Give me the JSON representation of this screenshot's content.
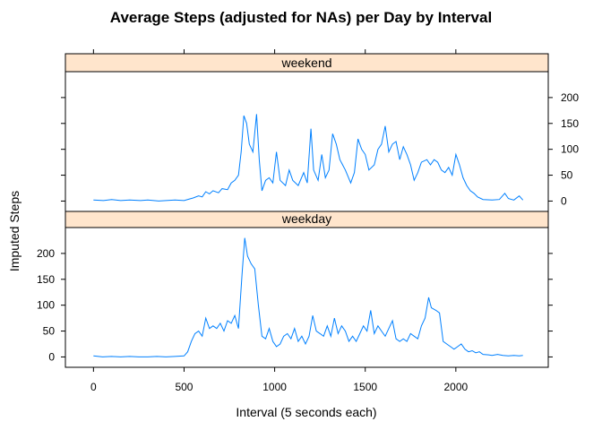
{
  "chart_data": {
    "type": "line",
    "title": "Average Steps (adjusted for NAs) per Day by Interval",
    "xlabel": "Interval (5 seconds each)",
    "ylabel": "Imputed Steps",
    "xlim": [
      -155,
      2510
    ],
    "ylim": [
      -20,
      250
    ],
    "xticks": [
      0,
      500,
      1000,
      1500,
      2000
    ],
    "xtick_labels": [
      "0",
      "500",
      "1000",
      "1500",
      "2000"
    ],
    "yticks": [
      0,
      50,
      100,
      150,
      200
    ],
    "ytick_labels": [
      "0",
      "50",
      "100",
      "150",
      "200"
    ],
    "grid": false,
    "panels": [
      {
        "name": "weekend",
        "points": [
          [
            0,
            2
          ],
          [
            55,
            1
          ],
          [
            100,
            3
          ],
          [
            150,
            1
          ],
          [
            200,
            2
          ],
          [
            260,
            1
          ],
          [
            300,
            2
          ],
          [
            360,
            0
          ],
          [
            400,
            1
          ],
          [
            450,
            2
          ],
          [
            500,
            1
          ],
          [
            530,
            4
          ],
          [
            550,
            6
          ],
          [
            580,
            10
          ],
          [
            600,
            8
          ],
          [
            620,
            18
          ],
          [
            640,
            14
          ],
          [
            660,
            20
          ],
          [
            690,
            16
          ],
          [
            710,
            24
          ],
          [
            740,
            22
          ],
          [
            760,
            35
          ],
          [
            780,
            40
          ],
          [
            800,
            50
          ],
          [
            815,
            95
          ],
          [
            830,
            165
          ],
          [
            845,
            150
          ],
          [
            860,
            110
          ],
          [
            880,
            95
          ],
          [
            900,
            168
          ],
          [
            915,
            80
          ],
          [
            930,
            20
          ],
          [
            950,
            40
          ],
          [
            970,
            45
          ],
          [
            990,
            35
          ],
          [
            1010,
            95
          ],
          [
            1030,
            40
          ],
          [
            1060,
            30
          ],
          [
            1080,
            60
          ],
          [
            1100,
            40
          ],
          [
            1130,
            30
          ],
          [
            1160,
            55
          ],
          [
            1180,
            35
          ],
          [
            1200,
            140
          ],
          [
            1215,
            60
          ],
          [
            1240,
            40
          ],
          [
            1260,
            90
          ],
          [
            1280,
            45
          ],
          [
            1300,
            60
          ],
          [
            1320,
            130
          ],
          [
            1340,
            110
          ],
          [
            1360,
            80
          ],
          [
            1390,
            60
          ],
          [
            1420,
            35
          ],
          [
            1440,
            55
          ],
          [
            1460,
            120
          ],
          [
            1480,
            100
          ],
          [
            1500,
            90
          ],
          [
            1520,
            60
          ],
          [
            1550,
            70
          ],
          [
            1570,
            100
          ],
          [
            1590,
            110
          ],
          [
            1610,
            145
          ],
          [
            1630,
            95
          ],
          [
            1650,
            110
          ],
          [
            1670,
            115
          ],
          [
            1690,
            80
          ],
          [
            1710,
            105
          ],
          [
            1730,
            90
          ],
          [
            1750,
            70
          ],
          [
            1770,
            40
          ],
          [
            1790,
            55
          ],
          [
            1810,
            75
          ],
          [
            1840,
            80
          ],
          [
            1860,
            70
          ],
          [
            1880,
            80
          ],
          [
            1900,
            75
          ],
          [
            1920,
            60
          ],
          [
            1940,
            55
          ],
          [
            1960,
            65
          ],
          [
            1980,
            50
          ],
          [
            2000,
            90
          ],
          [
            2020,
            70
          ],
          [
            2040,
            45
          ],
          [
            2060,
            30
          ],
          [
            2080,
            20
          ],
          [
            2100,
            15
          ],
          [
            2120,
            8
          ],
          [
            2150,
            3
          ],
          [
            2200,
            2
          ],
          [
            2240,
            3
          ],
          [
            2270,
            15
          ],
          [
            2290,
            5
          ],
          [
            2320,
            2
          ],
          [
            2350,
            10
          ],
          [
            2370,
            2
          ]
        ]
      },
      {
        "name": "weekday",
        "points": [
          [
            0,
            2
          ],
          [
            50,
            0
          ],
          [
            100,
            1
          ],
          [
            150,
            0
          ],
          [
            200,
            1
          ],
          [
            250,
            0
          ],
          [
            300,
            0
          ],
          [
            350,
            1
          ],
          [
            400,
            0
          ],
          [
            450,
            1
          ],
          [
            500,
            2
          ],
          [
            520,
            10
          ],
          [
            540,
            30
          ],
          [
            560,
            45
          ],
          [
            580,
            50
          ],
          [
            600,
            40
          ],
          [
            620,
            75
          ],
          [
            640,
            55
          ],
          [
            660,
            60
          ],
          [
            680,
            55
          ],
          [
            700,
            65
          ],
          [
            720,
            50
          ],
          [
            740,
            70
          ],
          [
            760,
            65
          ],
          [
            780,
            80
          ],
          [
            800,
            55
          ],
          [
            820,
            160
          ],
          [
            835,
            230
          ],
          [
            850,
            195
          ],
          [
            870,
            180
          ],
          [
            890,
            170
          ],
          [
            910,
            100
          ],
          [
            930,
            40
          ],
          [
            950,
            35
          ],
          [
            970,
            55
          ],
          [
            990,
            30
          ],
          [
            1010,
            20
          ],
          [
            1030,
            25
          ],
          [
            1050,
            40
          ],
          [
            1070,
            45
          ],
          [
            1090,
            35
          ],
          [
            1110,
            55
          ],
          [
            1130,
            30
          ],
          [
            1150,
            40
          ],
          [
            1170,
            25
          ],
          [
            1190,
            40
          ],
          [
            1210,
            80
          ],
          [
            1230,
            50
          ],
          [
            1250,
            45
          ],
          [
            1270,
            40
          ],
          [
            1290,
            60
          ],
          [
            1310,
            40
          ],
          [
            1330,
            75
          ],
          [
            1350,
            45
          ],
          [
            1370,
            60
          ],
          [
            1390,
            50
          ],
          [
            1410,
            30
          ],
          [
            1430,
            40
          ],
          [
            1450,
            30
          ],
          [
            1470,
            45
          ],
          [
            1490,
            60
          ],
          [
            1510,
            50
          ],
          [
            1530,
            90
          ],
          [
            1550,
            45
          ],
          [
            1570,
            60
          ],
          [
            1590,
            50
          ],
          [
            1610,
            40
          ],
          [
            1630,
            55
          ],
          [
            1650,
            70
          ],
          [
            1670,
            35
          ],
          [
            1690,
            30
          ],
          [
            1710,
            35
          ],
          [
            1730,
            30
          ],
          [
            1750,
            45
          ],
          [
            1770,
            40
          ],
          [
            1790,
            35
          ],
          [
            1810,
            60
          ],
          [
            1830,
            75
          ],
          [
            1850,
            115
          ],
          [
            1865,
            95
          ],
          [
            1890,
            90
          ],
          [
            1910,
            85
          ],
          [
            1930,
            30
          ],
          [
            1950,
            25
          ],
          [
            1970,
            20
          ],
          [
            1990,
            15
          ],
          [
            2010,
            20
          ],
          [
            2030,
            25
          ],
          [
            2050,
            15
          ],
          [
            2070,
            10
          ],
          [
            2090,
            12
          ],
          [
            2110,
            8
          ],
          [
            2130,
            10
          ],
          [
            2150,
            5
          ],
          [
            2180,
            4
          ],
          [
            2200,
            3
          ],
          [
            2230,
            5
          ],
          [
            2260,
            3
          ],
          [
            2290,
            2
          ],
          [
            2320,
            3
          ],
          [
            2350,
            2
          ],
          [
            2370,
            3
          ]
        ]
      }
    ]
  }
}
